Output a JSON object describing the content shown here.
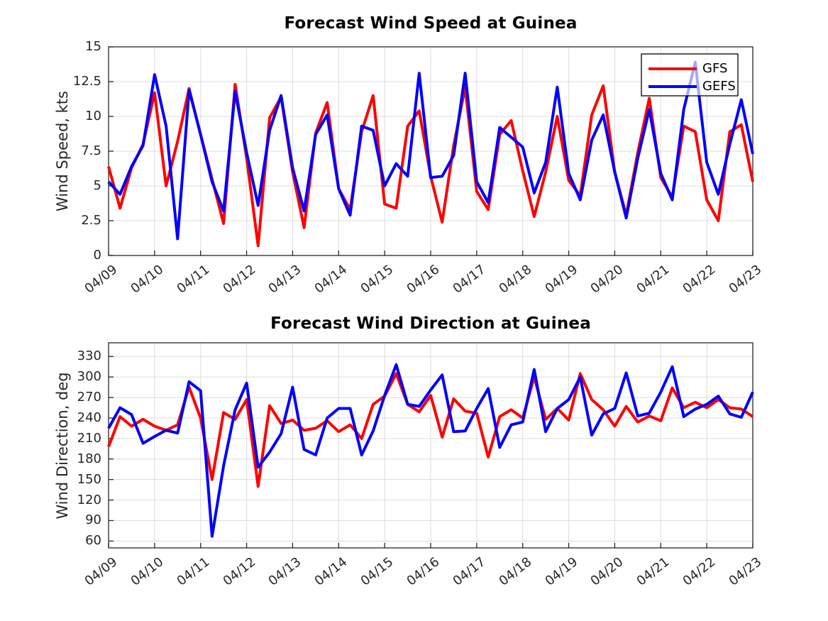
{
  "figure": {
    "background": "#ffffff",
    "axis_color": "#262626",
    "grid_color": "#dcdcdc",
    "tick_label_color": "#262626"
  },
  "legend": {
    "entries": [
      {
        "label": "GFS",
        "color": "#ff0000"
      },
      {
        "label": "GEFS",
        "color": "#0000ff"
      }
    ]
  },
  "chart_data": [
    {
      "type": "line",
      "title": "Forecast Wind Speed at Guinea",
      "xlabel": "",
      "ylabel": "Wind Speed, kts",
      "ylim": [
        0,
        15
      ],
      "yticks": [
        0,
        2.5,
        5,
        7.5,
        10,
        12.5,
        15
      ],
      "grid": true,
      "legend_position": "northeast",
      "x_start": "04/09 00:00",
      "x_step_hours": 6,
      "xticklabels": [
        "04/09",
        "04/10",
        "04/11",
        "04/12",
        "04/13",
        "04/14",
        "04/15",
        "04/16",
        "04/17",
        "04/18",
        "04/19",
        "04/20",
        "04/21",
        "04/22",
        "04/23"
      ],
      "series": [
        {
          "name": "GFS",
          "color": "#ff0000",
          "values": [
            6.4,
            3.4,
            6.3,
            8.0,
            11.7,
            5.0,
            8.2,
            12.0,
            8.7,
            5.5,
            2.3,
            12.3,
            7.0,
            0.7,
            9.9,
            11.4,
            6.0,
            2.0,
            8.8,
            11.0,
            4.8,
            3.3,
            8.9,
            11.5,
            3.7,
            3.4,
            9.3,
            10.4,
            5.7,
            2.4,
            7.9,
            12.1,
            4.6,
            3.3,
            8.7,
            9.7,
            6.1,
            2.8,
            6.0,
            10.0,
            5.4,
            4.3,
            10.1,
            12.2,
            6.0,
            2.9,
            7.4,
            11.3,
            5.6,
            4.2,
            9.3,
            8.9,
            4.0,
            2.5,
            8.9,
            9.4,
            5.3
          ]
        },
        {
          "name": "GEFS",
          "color": "#0000ff",
          "values": [
            5.3,
            4.4,
            6.4,
            7.9,
            13.0,
            9.3,
            1.2,
            11.9,
            8.7,
            5.3,
            3.2,
            11.8,
            7.4,
            3.6,
            9.0,
            11.5,
            6.3,
            3.2,
            8.7,
            10.1,
            4.8,
            2.9,
            9.3,
            9.0,
            5.0,
            6.6,
            5.7,
            13.1,
            5.6,
            5.7,
            7.2,
            13.1,
            5.3,
            3.8,
            9.2,
            8.5,
            7.8,
            4.5,
            6.7,
            12.1,
            5.9,
            4.0,
            8.3,
            10.1,
            6.0,
            2.7,
            7.0,
            10.5,
            5.9,
            4.0,
            10.5,
            13.9,
            6.7,
            4.4,
            8.0,
            11.2,
            7.3
          ]
        }
      ]
    },
    {
      "type": "line",
      "title": "Forecast Wind Direction at Guinea",
      "xlabel": "",
      "ylabel": "Wind Direction, deg",
      "ylim": [
        50,
        350
      ],
      "yticks": [
        60,
        90,
        120,
        150,
        180,
        210,
        240,
        270,
        300,
        330
      ],
      "grid": true,
      "legend_position": "none",
      "x_start": "04/09 00:00",
      "x_step_hours": 6,
      "xticklabels": [
        "04/09",
        "04/10",
        "04/11",
        "04/12",
        "04/13",
        "04/14",
        "04/15",
        "04/16",
        "04/17",
        "04/18",
        "04/19",
        "04/20",
        "04/21",
        "04/22",
        "04/23"
      ],
      "series": [
        {
          "name": "GFS",
          "color": "#ff0000",
          "values": [
            198,
            242,
            228,
            238,
            228,
            222,
            230,
            285,
            240,
            150,
            248,
            238,
            267,
            140,
            258,
            232,
            237,
            222,
            225,
            236,
            220,
            230,
            210,
            260,
            272,
            305,
            260,
            249,
            273,
            212,
            268,
            250,
            247,
            183,
            242,
            252,
            240,
            300,
            238,
            254,
            237,
            305,
            267,
            252,
            228,
            257,
            234,
            243,
            236,
            284,
            255,
            263,
            255,
            267,
            255,
            253,
            242
          ]
        },
        {
          "name": "GEFS",
          "color": "#0000ff",
          "values": [
            225,
            255,
            245,
            203,
            213,
            222,
            218,
            293,
            280,
            67,
            170,
            252,
            291,
            168,
            190,
            217,
            285,
            194,
            186,
            240,
            254,
            254,
            186,
            221,
            273,
            318,
            260,
            257,
            281,
            303,
            220,
            221,
            254,
            283,
            197,
            230,
            234,
            311,
            220,
            254,
            267,
            300,
            215,
            246,
            254,
            306,
            243,
            247,
            278,
            315,
            242,
            253,
            260,
            272,
            246,
            241,
            278
          ]
        }
      ]
    }
  ]
}
